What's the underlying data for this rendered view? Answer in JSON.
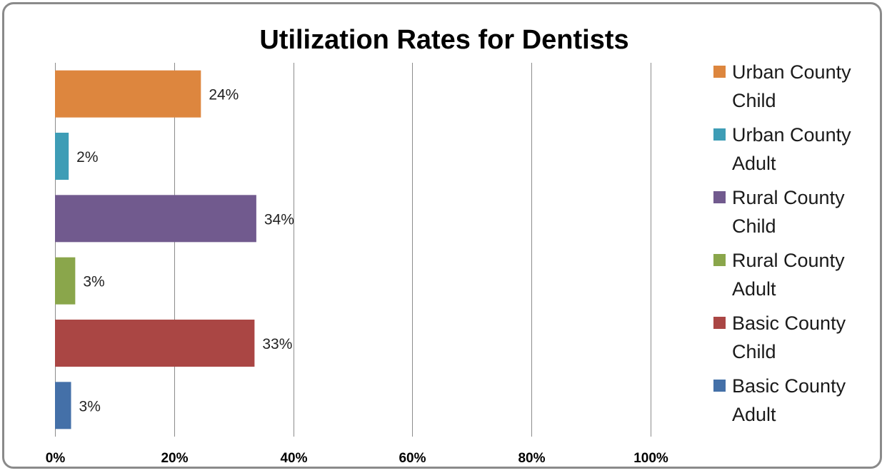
{
  "chart_data": {
    "type": "bar",
    "orientation": "horizontal",
    "title": "Utilization Rates for Dentists",
    "xlabel": "",
    "ylabel": "",
    "xlim": [
      0,
      100
    ],
    "x_ticks": [
      "0%",
      "20%",
      "40%",
      "60%",
      "80%",
      "100%"
    ],
    "grid": true,
    "legend_position": "right",
    "series": [
      {
        "name": "Urban County Child",
        "legend_lines": [
          "Urban County",
          "Child"
        ],
        "value": 24.5,
        "label": "24%",
        "color": "#dd863e"
      },
      {
        "name": "Urban County Adult",
        "legend_lines": [
          "Urban County",
          "Adult"
        ],
        "value": 2.3,
        "label": "2%",
        "color": "#3e9db6"
      },
      {
        "name": "Rural County Child",
        "legend_lines": [
          "Rural County",
          "Child"
        ],
        "value": 33.8,
        "label": "34%",
        "color": "#715a8e"
      },
      {
        "name": "Rural County Adult",
        "legend_lines": [
          "Rural County",
          "Adult"
        ],
        "value": 3.4,
        "label": "3%",
        "color": "#8aa64b"
      },
      {
        "name": "Basic County Child",
        "legend_lines": [
          "Basic County",
          "Child"
        ],
        "value": 33.5,
        "label": "33%",
        "color": "#aa4644"
      },
      {
        "name": "Basic County Adult",
        "legend_lines": [
          "Basic County",
          "Adult"
        ],
        "value": 2.7,
        "label": "3%",
        "color": "#4470a8"
      }
    ]
  }
}
